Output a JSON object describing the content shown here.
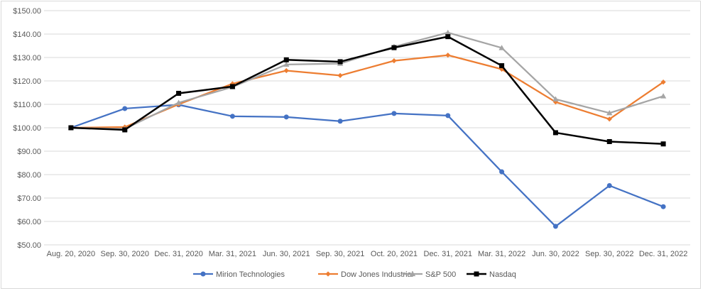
{
  "chart_data": {
    "type": "line",
    "title": "",
    "xlabel": "",
    "ylabel": "",
    "categories": [
      "Aug. 20, 2020",
      "Sep. 30, 2020",
      "Dec. 31, 2020",
      "Mar. 31, 2021",
      "Jun. 30, 2021",
      "Sep. 30, 2021",
      "Oct. 20, 2021",
      "Dec. 31, 2021",
      "Mar. 31, 2022",
      "Jun. 30, 2022",
      "Sep. 30, 2022",
      "Dec. 31, 2022"
    ],
    "ylim": [
      50,
      150
    ],
    "ytick_labels": [
      "$50.00",
      "$60.00",
      "$70.00",
      "$80.00",
      "$90.00",
      "$100.00",
      "$110.00",
      "$120.00",
      "$130.00",
      "$140.00",
      "$150.00"
    ],
    "grid": true,
    "legend_position": "bottom",
    "series": [
      {
        "name": "Mirion Technologies",
        "color": "#4472c4",
        "marker": "circle",
        "values": [
          100.0,
          108.2,
          109.8,
          104.9,
          104.6,
          102.8,
          106.1,
          105.2,
          81.2,
          57.9,
          75.3,
          66.3
        ]
      },
      {
        "name": "Dow Jones Industrial",
        "color": "#ed7d31",
        "marker": "diamond",
        "values": [
          100.0,
          100.3,
          110.0,
          118.8,
          124.4,
          122.3,
          128.6,
          131.0,
          125.0,
          111.0,
          103.7,
          119.5
        ]
      },
      {
        "name": "S&P 500",
        "color": "#a5a5a5",
        "marker": "triangle",
        "values": [
          100.0,
          99.5,
          110.7,
          117.4,
          127.0,
          127.4,
          134.6,
          140.6,
          134.1,
          112.2,
          106.3,
          113.5
        ]
      },
      {
        "name": "Nasdaq",
        "color": "#000000",
        "marker": "square",
        "values": [
          100.0,
          99.1,
          114.7,
          117.6,
          129.0,
          128.2,
          134.2,
          138.9,
          126.5,
          97.9,
          94.1,
          93.1
        ]
      }
    ]
  }
}
